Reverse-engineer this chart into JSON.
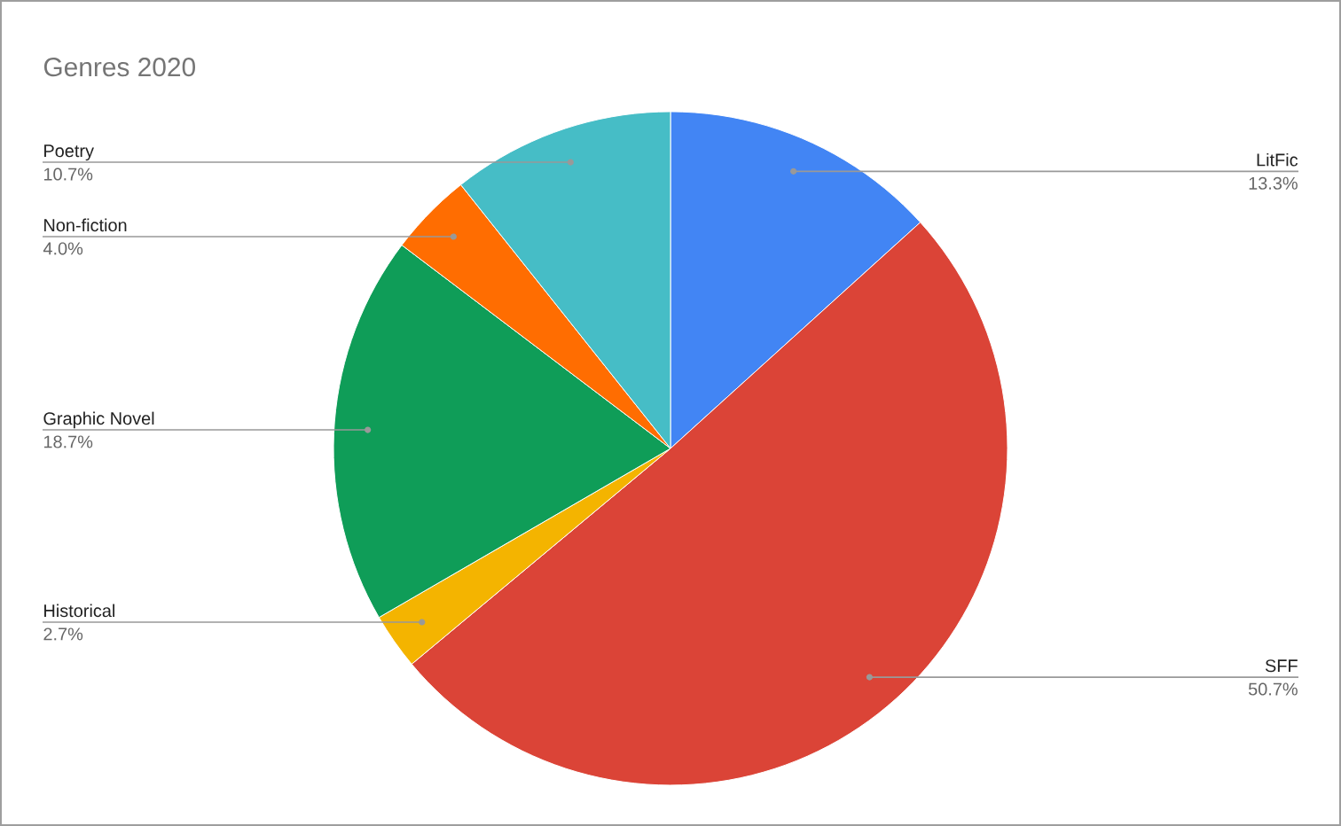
{
  "chart_data": {
    "type": "pie",
    "title": "Genres 2020",
    "categories": [
      "LitFic",
      "SFF",
      "Historical",
      "Graphic Novel",
      "Non-fiction",
      "Poetry"
    ],
    "values": [
      13.3,
      50.7,
      2.7,
      18.7,
      4.0,
      10.7
    ],
    "value_labels": [
      "13.3%",
      "50.7%",
      "2.7%",
      "18.7%",
      "4.0%",
      "10.7%"
    ],
    "colors": [
      "#4285f4",
      "#db4437",
      "#f4b400",
      "#0f9d58",
      "#ff6d01",
      "#46bdc6"
    ]
  }
}
